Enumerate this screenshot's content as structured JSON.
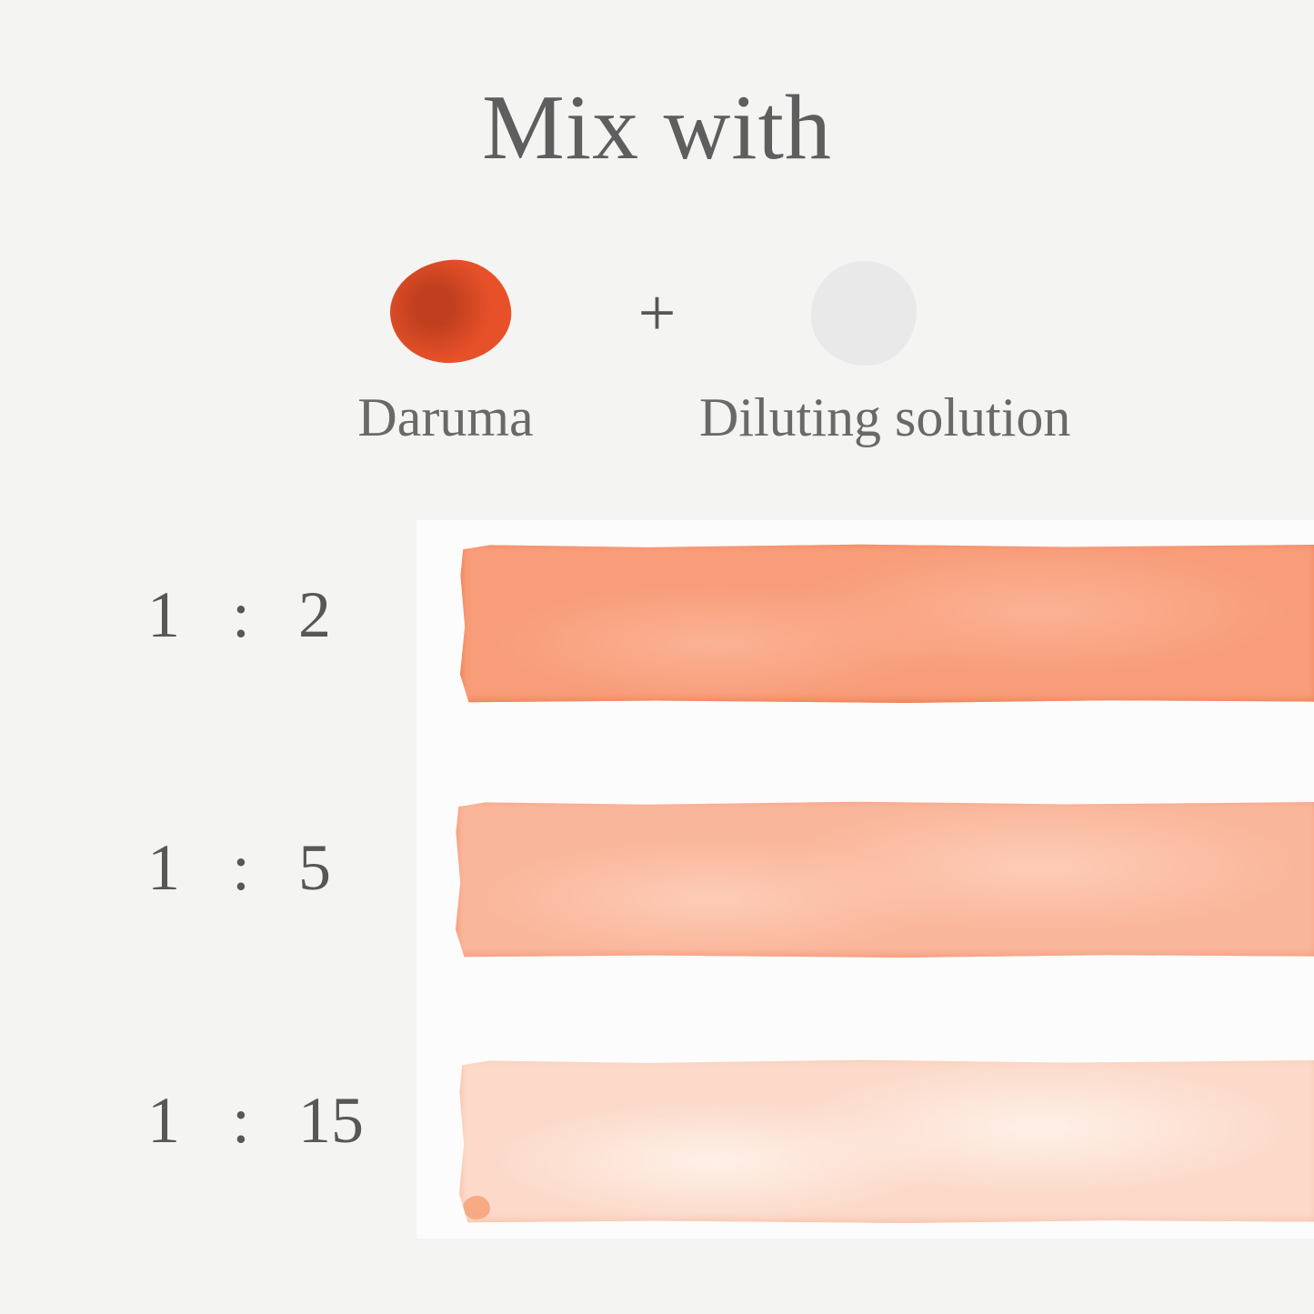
{
  "title": "Mix with",
  "mix": {
    "ink": {
      "label": "Daruma",
      "colors": {
        "outer": "#e7512a",
        "inner": "#c03f1e"
      }
    },
    "operator": "+",
    "diluent": {
      "label": "Diluting solution",
      "colors": {
        "fill": "#e9e9e9"
      }
    }
  },
  "rows": [
    {
      "ink_part": "1",
      "separator": ":",
      "diluent_part": "2",
      "colors": {
        "base": "#f89c79",
        "edge": "#ee8055",
        "light": "#fbb294"
      }
    },
    {
      "ink_part": "1",
      "separator": ":",
      "diluent_part": "5",
      "colors": {
        "base": "#fab69b",
        "edge": "#f59a7b",
        "light": "#fdccb6"
      }
    },
    {
      "ink_part": "1",
      "separator": ":",
      "diluent_part": "15",
      "colors": {
        "base": "#fcd9c9",
        "edge": "#f8c2a9",
        "light": "#fef0e7",
        "drip": "#f5a278"
      }
    }
  ]
}
